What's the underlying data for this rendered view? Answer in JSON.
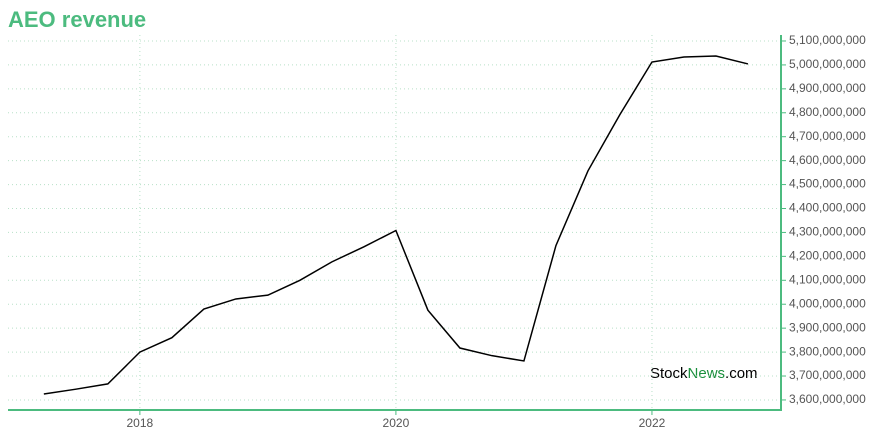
{
  "chart_data": {
    "type": "line",
    "title": "AEO revenue",
    "x": [
      2017.25,
      2017.5,
      2017.75,
      2018,
      2018.25,
      2018.5,
      2018.75,
      2019,
      2019.25,
      2019.5,
      2019.75,
      2020,
      2020.25,
      2020.5,
      2020.75,
      2021,
      2021.25,
      2021.5,
      2021.75,
      2022,
      2022.25,
      2022.5,
      2022.75
    ],
    "series": [
      {
        "name": "AEO revenue",
        "color": "#000000",
        "values": [
          3625000000,
          3645000000,
          3667000000,
          3800000000,
          3860000000,
          3980000000,
          4022000000,
          4038000000,
          4100000000,
          4177000000,
          4240000000,
          4308000000,
          3975000000,
          3817000000,
          3785000000,
          3763000000,
          4245000000,
          4557000000,
          4793000000,
          5012000000,
          5033000000,
          5037000000,
          5004000000
        ]
      }
    ],
    "xlim": [
      2016.97,
      2023.008
    ],
    "xticks": [
      2018,
      2020,
      2022
    ],
    "ylim": [
      3558000000,
      5125000000
    ],
    "yticks": [
      {
        "value": 3600000000,
        "label": "3,600,000,000"
      },
      {
        "value": 3700000000,
        "label": "3,700,000,000"
      },
      {
        "value": 3800000000,
        "label": "3,800,000,000"
      },
      {
        "value": 3900000000,
        "label": "3,900,000,000"
      },
      {
        "value": 4000000000,
        "label": "4,000,000,000"
      },
      {
        "value": 4100000000,
        "label": "4,100,000,000"
      },
      {
        "value": 4200000000,
        "label": "4,200,000,000"
      },
      {
        "value": 4300000000,
        "label": "4,300,000,000"
      },
      {
        "value": 4400000000,
        "label": "4,400,000,000"
      },
      {
        "value": 4500000000,
        "label": "4,500,000,000"
      },
      {
        "value": 4600000000,
        "label": "4,600,000,000"
      },
      {
        "value": 4700000000,
        "label": "4,700,000,000"
      },
      {
        "value": 4800000000,
        "label": "4,800,000,000"
      },
      {
        "value": 4900000000,
        "label": "4,900,000,000"
      },
      {
        "value": 5000000000,
        "label": "5,000,000,000"
      },
      {
        "value": 5100000000,
        "label": "5,100,000,000"
      }
    ],
    "grid": true,
    "watermark": [
      "Stock",
      "News",
      ".com"
    ]
  }
}
